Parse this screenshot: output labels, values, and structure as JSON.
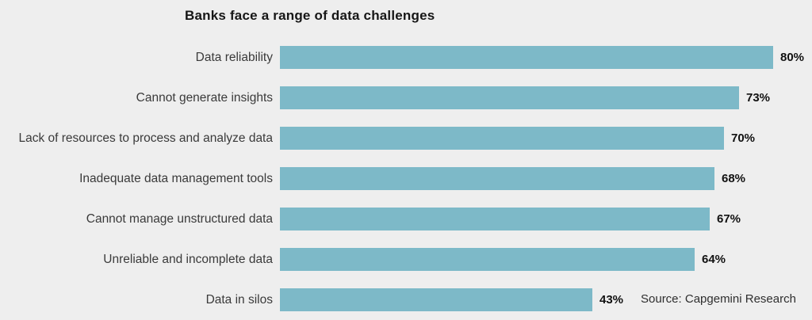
{
  "page": {
    "background_color": "#eeeeee",
    "bar_color": "#7db9c8"
  },
  "chart_data": {
    "type": "bar",
    "orientation": "horizontal",
    "title": "Banks face a range of data challenges",
    "categories": [
      "Data reliability",
      "Cannot generate insights",
      "Lack of resources to process and analyze data",
      "Inadequate data management tools",
      "Cannot manage unstructured data",
      "Unreliable and incomplete data",
      "Data in silos"
    ],
    "values": [
      80,
      73,
      70,
      68,
      67,
      64,
      43
    ],
    "value_labels": [
      "80%",
      "73%",
      "70%",
      "68%",
      "67%",
      "64%",
      "43%"
    ],
    "unit": "%",
    "xlabel": "",
    "ylabel": "",
    "axis_visible": false,
    "grid": false,
    "legend": "none",
    "xlim_implied": [
      -21,
      80
    ],
    "bar_color": "#7db9c8",
    "source": "Source: Capgemini Research"
  }
}
